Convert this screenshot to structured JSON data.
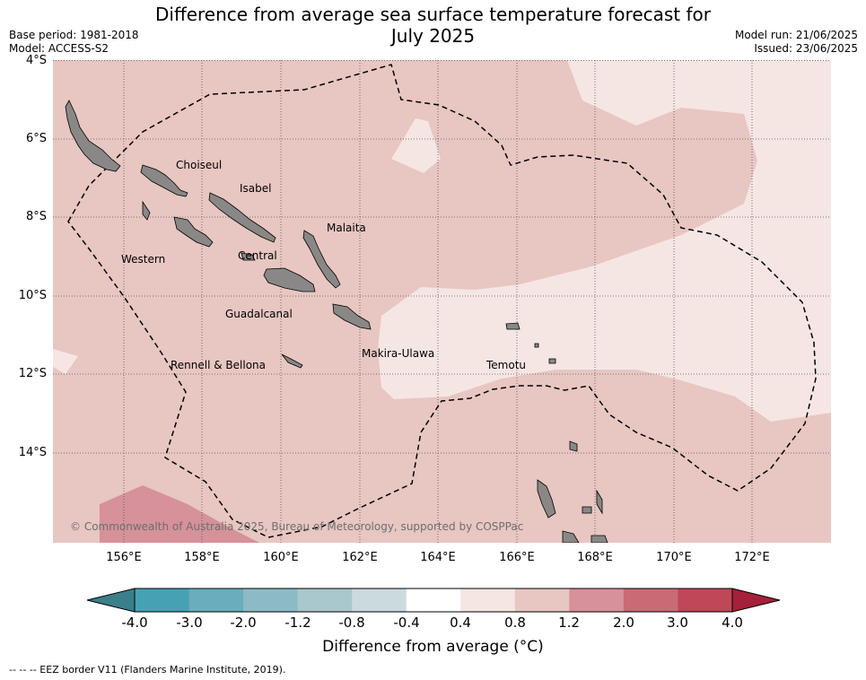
{
  "title": {
    "line1": "Difference from average sea surface temperature forecast for",
    "line2": "July 2025"
  },
  "meta": {
    "base_period": "Base period: 1981-2018",
    "model": "Model: ACCESS-S2",
    "model_run": "Model run: 21/06/2025",
    "issued": "Issued: 23/06/2025"
  },
  "axes": {
    "latitudes": [
      "4°S",
      "6°S",
      "8°S",
      "10°S",
      "12°S",
      "14°S"
    ],
    "longitudes": [
      "156°E",
      "158°E",
      "160°E",
      "162°E",
      "164°E",
      "166°E",
      "168°E",
      "170°E",
      "172°E"
    ]
  },
  "map": {
    "provinces": [
      "Choiseul",
      "Isabel",
      "Malaita",
      "Western",
      "Central",
      "Guadalcanal",
      "Makira-Ulawa",
      "Rennell & Bellona",
      "Temotu"
    ],
    "copyright": "© Commonwealth of Australia 2025, Bureau of Meteorology, supported by COSPPac",
    "colors": {
      "anom_0_4_to_0_8": "#f5e6e4",
      "anom_0_8_to_1_2": "#e8c6c2",
      "anom_1_2_to_2_0": "#d6919a",
      "land": "#8a8886",
      "eez": "#000000"
    }
  },
  "colorbar": {
    "title": "Difference from average (°C)",
    "ticks": [
      "-4.0",
      "-3.0",
      "-2.0",
      "-1.2",
      "-0.8",
      "-0.4",
      "0.4",
      "0.8",
      "1.2",
      "2.0",
      "3.0",
      "4.0"
    ],
    "colors": [
      "#3a7f8a",
      "#46a1b4",
      "#6aadbd",
      "#8cbbc6",
      "#a8c8ce",
      "#cadadd",
      "#ffffff",
      "#f5e6e4",
      "#e8c6c2",
      "#d6919a",
      "#c96a74",
      "#bf4757",
      "#a5203a"
    ]
  },
  "footnote": "--  --  -- EEZ border V11 (Flanders Marine Institute, 2019)."
}
